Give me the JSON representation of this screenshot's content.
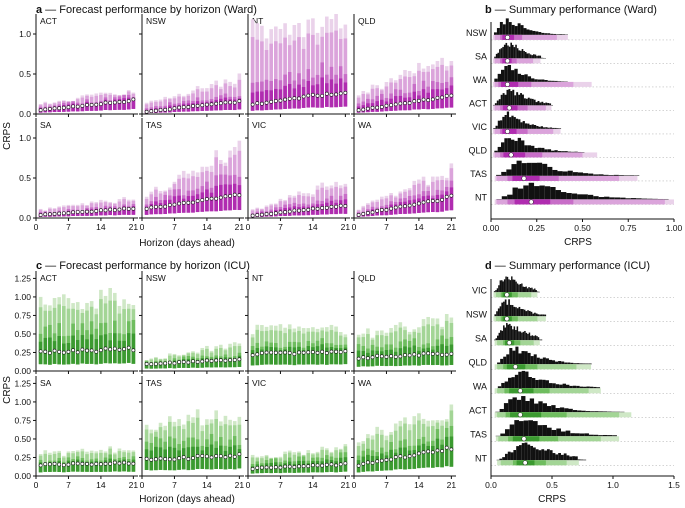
{
  "colors": {
    "ward": [
      "#ead2ea",
      "#dba4db",
      "#c86ec8",
      "#b02cb0"
    ],
    "icu": [
      "#cfe8c6",
      "#a3d596",
      "#6fbd5f",
      "#3b9a30"
    ],
    "median_fill": "#ffffff",
    "axis": "#111111"
  },
  "panel_a": {
    "letter": "a",
    "title": " — Forecast performance by horizon (Ward)",
    "ylabel": "CRPS",
    "xlabel": "Horizon (days ahead)",
    "xticks": [
      "0",
      "7",
      "14",
      "21"
    ],
    "yticks": [
      "0.0",
      "0.5",
      "1.0"
    ],
    "states": [
      "ACT",
      "NSW",
      "NT",
      "QLD",
      "SA",
      "TAS",
      "VIC",
      "WA"
    ]
  },
  "panel_b": {
    "letter": "b",
    "title": " — Summary performance (Ward)",
    "xlabel": "CRPS",
    "xticks": [
      "0.00",
      "0.25",
      "0.50",
      "0.75",
      "1.00"
    ],
    "states": [
      "NSW",
      "SA",
      "WA",
      "ACT",
      "VIC",
      "QLD",
      "TAS",
      "NT"
    ]
  },
  "panel_c": {
    "letter": "c",
    "title": " — Forecast performance by horizon (ICU)",
    "ylabel": "CRPS",
    "xlabel": "Horizon (days ahead)",
    "xticks": [
      "0",
      "7",
      "14",
      "21"
    ],
    "yticks": [
      "0.00",
      "0.25",
      "0.50",
      "0.75",
      "1.00",
      "1.25"
    ],
    "states": [
      "ACT",
      "NSW",
      "NT",
      "QLD",
      "SA",
      "TAS",
      "VIC",
      "WA"
    ]
  },
  "panel_d": {
    "letter": "d",
    "title": " — Summary performance (ICU)",
    "xlabel": "CRPS",
    "xticks": [
      "0.0",
      "0.5",
      "1.0",
      "1.5"
    ],
    "states": [
      "VIC",
      "NSW",
      "SA",
      "QLD",
      "WA",
      "ACT",
      "TAS",
      "NT"
    ]
  },
  "chart_data": [
    {
      "id": "ward_horizon",
      "type": "interval-boxes by horizon",
      "title": "Forecast performance by horizon (Ward)",
      "xlabel": "Horizon (days ahead)",
      "ylabel": "CRPS",
      "x": "horizon 1-21",
      "ylim": [
        0,
        1.25
      ],
      "states": {
        "ACT": {
          "median_start": 0.05,
          "median_end": 0.17,
          "q50_start": 0.1,
          "q50_end": 0.23,
          "q95_start": 0.13,
          "q95_end": 0.3
        },
        "NSW": {
          "median_start": 0.03,
          "median_end": 0.16,
          "q50_start": 0.08,
          "q50_end": 0.26,
          "q95_start": 0.14,
          "q95_end": 0.45
        },
        "NT": {
          "median_start": 0.12,
          "median_end": 0.28,
          "q50_start": 0.4,
          "q50_end": 0.6,
          "q95_start": 1.05,
          "q95_end": 1.1
        },
        "QLD": {
          "median_start": 0.05,
          "median_end": 0.22,
          "q50_start": 0.15,
          "q50_end": 0.45,
          "q95_start": 0.25,
          "q95_end": 0.72
        },
        "SA": {
          "median_start": 0.04,
          "median_end": 0.12,
          "q50_start": 0.07,
          "q50_end": 0.16,
          "q95_start": 0.1,
          "q95_end": 0.25
        },
        "TAS": {
          "median_start": 0.12,
          "median_end": 0.28,
          "q50_start": 0.2,
          "q50_end": 0.55,
          "q95_start": 0.28,
          "q95_end": 0.9
        },
        "VIC": {
          "median_start": 0.03,
          "median_end": 0.16,
          "q50_start": 0.06,
          "q50_end": 0.3,
          "q95_start": 0.1,
          "q95_end": 0.48
        },
        "WA": {
          "median_start": 0.04,
          "median_end": 0.26,
          "q50_start": 0.08,
          "q50_end": 0.4,
          "q95_start": 0.12,
          "q95_end": 0.6
        }
      }
    },
    {
      "id": "ward_summary",
      "type": "histogram + interval",
      "title": "Summary performance (Ward)",
      "xlabel": "CRPS",
      "xlim": [
        0,
        1.0
      ],
      "states": {
        "NSW": {
          "median": 0.09,
          "q50": [
            0.05,
            0.17
          ],
          "q90": [
            0.02,
            0.36
          ],
          "q95": [
            0.01,
            0.42
          ],
          "tail": 0.55
        },
        "SA": {
          "median": 0.09,
          "q50": [
            0.05,
            0.14
          ],
          "q90": [
            0.02,
            0.23
          ],
          "q95": [
            0.01,
            0.27
          ],
          "tail": 0.3
        },
        "WA": {
          "median": 0.09,
          "q50": [
            0.04,
            0.22
          ],
          "q90": [
            0.02,
            0.45
          ],
          "q95": [
            0.01,
            0.55
          ],
          "tail": 0.62
        },
        "ACT": {
          "median": 0.1,
          "q50": [
            0.05,
            0.2
          ],
          "q90": [
            0.02,
            0.3
          ],
          "q95": [
            0.01,
            0.33
          ],
          "tail": 0.36
        },
        "VIC": {
          "median": 0.09,
          "q50": [
            0.05,
            0.2
          ],
          "q90": [
            0.02,
            0.34
          ],
          "q95": [
            0.01,
            0.38
          ],
          "tail": 0.42
        },
        "QLD": {
          "median": 0.11,
          "q50": [
            0.05,
            0.28
          ],
          "q90": [
            0.02,
            0.5
          ],
          "q95": [
            0.01,
            0.58
          ],
          "tail": 0.62
        },
        "TAS": {
          "median": 0.18,
          "q50": [
            0.09,
            0.37
          ],
          "q90": [
            0.03,
            0.7
          ],
          "q95": [
            0.02,
            0.8
          ],
          "tail": 0.95
        },
        "NT": {
          "median": 0.22,
          "q50": [
            0.09,
            0.45
          ],
          "q90": [
            0.03,
            0.95
          ],
          "q95": [
            0.02,
            1.0
          ],
          "tail": 1.0
        }
      }
    },
    {
      "id": "icu_horizon",
      "type": "interval-boxes by horizon",
      "title": "Forecast performance by horizon (ICU)",
      "xlabel": "Horizon (days ahead)",
      "ylabel": "CRPS",
      "x": "horizon 1-21",
      "ylim": [
        0,
        1.35
      ],
      "states": {
        "ACT": {
          "median_start": 0.25,
          "median_end": 0.3,
          "q50_start": 0.55,
          "q50_end": 0.6,
          "q95_start": 0.95,
          "q95_end": 1.0
        },
        "NSW": {
          "median_start": 0.09,
          "median_end": 0.16,
          "q50_start": 0.12,
          "q50_end": 0.24,
          "q95_start": 0.15,
          "q95_end": 0.38
        },
        "NT": {
          "median_start": 0.23,
          "median_end": 0.26,
          "q50_start": 0.35,
          "q50_end": 0.4,
          "q95_start": 0.55,
          "q95_end": 0.58
        },
        "QLD": {
          "median_start": 0.18,
          "median_end": 0.24,
          "q50_start": 0.32,
          "q50_end": 0.42,
          "q95_start": 0.48,
          "q95_end": 0.7
        },
        "SA": {
          "median_start": 0.15,
          "median_end": 0.18,
          "q50_start": 0.2,
          "q50_end": 0.28,
          "q95_start": 0.3,
          "q95_end": 0.38
        },
        "TAS": {
          "median_start": 0.22,
          "median_end": 0.28,
          "q50_start": 0.45,
          "q50_end": 0.5,
          "q95_start": 0.72,
          "q95_end": 0.85
        },
        "VIC": {
          "median_start": 0.1,
          "median_end": 0.16,
          "q50_start": 0.18,
          "q50_end": 0.28,
          "q95_start": 0.25,
          "q95_end": 0.4
        },
        "WA": {
          "median_start": 0.15,
          "median_end": 0.38,
          "q50_start": 0.3,
          "q50_end": 0.6,
          "q95_start": 0.5,
          "q95_end": 0.9
        }
      }
    },
    {
      "id": "icu_summary",
      "type": "histogram + interval",
      "title": "Summary performance (ICU)",
      "xlabel": "CRPS",
      "xlim": [
        0,
        1.5
      ],
      "states": {
        "VIC": {
          "median": 0.13,
          "q50": [
            0.08,
            0.22
          ],
          "q90": [
            0.04,
            0.33
          ],
          "q95": [
            0.02,
            0.38
          ],
          "tail": 0.4
        },
        "NSW": {
          "median": 0.13,
          "q50": [
            0.08,
            0.22
          ],
          "q90": [
            0.04,
            0.38
          ],
          "q95": [
            0.02,
            0.45
          ],
          "tail": 0.48
        },
        "SA": {
          "median": 0.15,
          "q50": [
            0.1,
            0.24
          ],
          "q90": [
            0.05,
            0.35
          ],
          "q95": [
            0.03,
            0.4
          ],
          "tail": 0.42
        },
        "QLD": {
          "median": 0.2,
          "q50": [
            0.1,
            0.38
          ],
          "q90": [
            0.05,
            0.7
          ],
          "q95": [
            0.03,
            0.82
          ],
          "tail": 0.85
        },
        "WA": {
          "median": 0.24,
          "q50": [
            0.11,
            0.48
          ],
          "q90": [
            0.05,
            0.8
          ],
          "q95": [
            0.03,
            0.9
          ],
          "tail": 0.95
        },
        "ACT": {
          "median": 0.24,
          "q50": [
            0.12,
            0.62
          ],
          "q90": [
            0.05,
            1.05
          ],
          "q95": [
            0.03,
            1.15
          ],
          "tail": 1.2
        },
        "TAS": {
          "median": 0.27,
          "q50": [
            0.14,
            0.55
          ],
          "q90": [
            0.06,
            0.9
          ],
          "q95": [
            0.04,
            1.05
          ],
          "tail": 1.3
        },
        "NT": {
          "median": 0.28,
          "q50": [
            0.18,
            0.45
          ],
          "q90": [
            0.08,
            0.62
          ],
          "q95": [
            0.05,
            0.72
          ],
          "tail": 0.78
        }
      }
    }
  ]
}
